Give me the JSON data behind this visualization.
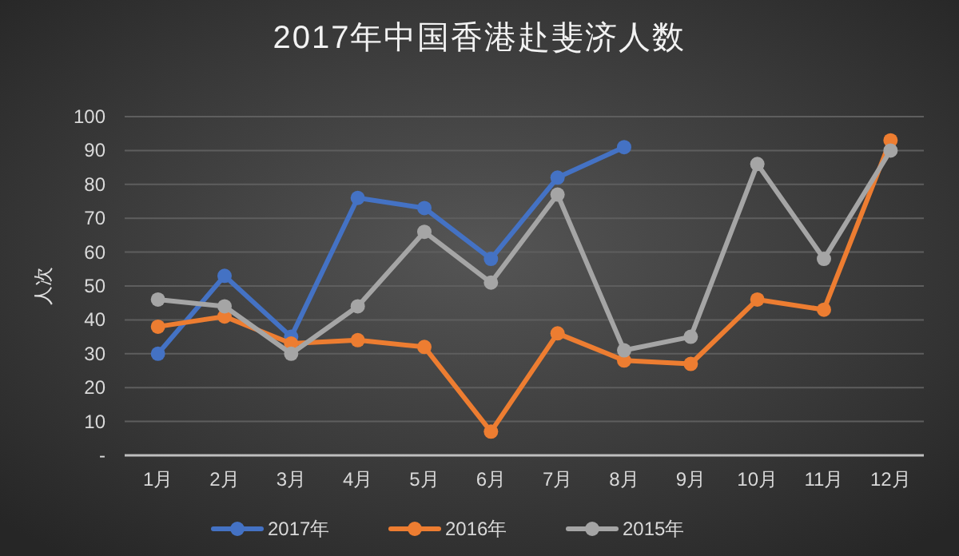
{
  "chart_data": {
    "type": "line",
    "title": "2017年中国香港赴斐济人数",
    "ylabel": "人次",
    "categories": [
      "1月",
      "2月",
      "3月",
      "4月",
      "5月",
      "6月",
      "7月",
      "8月",
      "9月",
      "10月",
      "11月",
      "12月"
    ],
    "series": [
      {
        "name": "2017年",
        "color": "#4472c4",
        "values": [
          30,
          53,
          35,
          76,
          73,
          58,
          82,
          91,
          null,
          null,
          null,
          null
        ]
      },
      {
        "name": "2016年",
        "color": "#ed7d31",
        "values": [
          38,
          41,
          33,
          34,
          32,
          7,
          36,
          28,
          27,
          46,
          43,
          93
        ]
      },
      {
        "name": "2015年",
        "color": "#a5a5a5",
        "values": [
          46,
          44,
          30,
          44,
          66,
          51,
          77,
          31,
          35,
          86,
          58,
          90
        ]
      }
    ],
    "ylim": [
      0,
      100
    ],
    "yticks": [
      {
        "value": 0,
        "label": "-"
      },
      10,
      20,
      30,
      40,
      50,
      60,
      70,
      80,
      90,
      100
    ],
    "grid": "y",
    "legend": "bottom",
    "marker": "circle",
    "line_style": "solid"
  }
}
